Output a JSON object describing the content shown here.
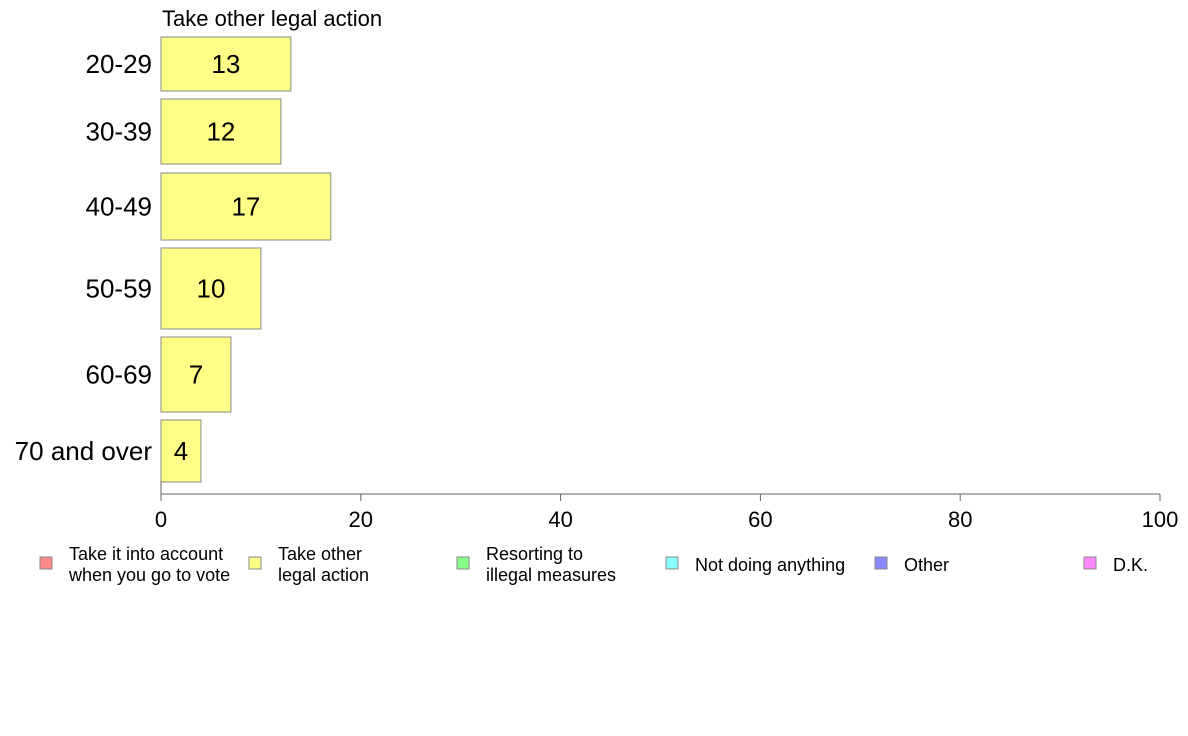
{
  "chart_data": {
    "type": "bar",
    "orientation": "horizontal",
    "title": "Take other legal action",
    "categories": [
      "20-29",
      "30-39",
      "40-49",
      "50-59",
      "60-69",
      "70 and over"
    ],
    "values": [
      13,
      12,
      17,
      10,
      7,
      4
    ],
    "value_labels": [
      "13",
      "12",
      "17",
      "10",
      "7",
      "4"
    ],
    "xlim": [
      0,
      100
    ],
    "x_ticks": [
      0,
      20,
      40,
      60,
      80,
      100
    ],
    "x_tick_labels": [
      "0",
      "20",
      "40",
      "60",
      "80",
      "100"
    ],
    "bar_color": "#ffff88",
    "legend_position": "bottom",
    "legend": [
      {
        "lines": [
          "Take it into account",
          "when you go to vote"
        ],
        "color": "#ff8888"
      },
      {
        "lines": [
          "Take other",
          "legal action"
        ],
        "color": "#ffff88"
      },
      {
        "lines": [
          "Resorting to",
          "illegal measures"
        ],
        "color": "#88ff88"
      },
      {
        "lines": [
          "Not doing anything"
        ],
        "color": "#88ffff"
      },
      {
        "lines": [
          "Other"
        ],
        "color": "#8888ff"
      },
      {
        "lines": [
          "D.K."
        ],
        "color": "#ff88ff"
      }
    ]
  }
}
